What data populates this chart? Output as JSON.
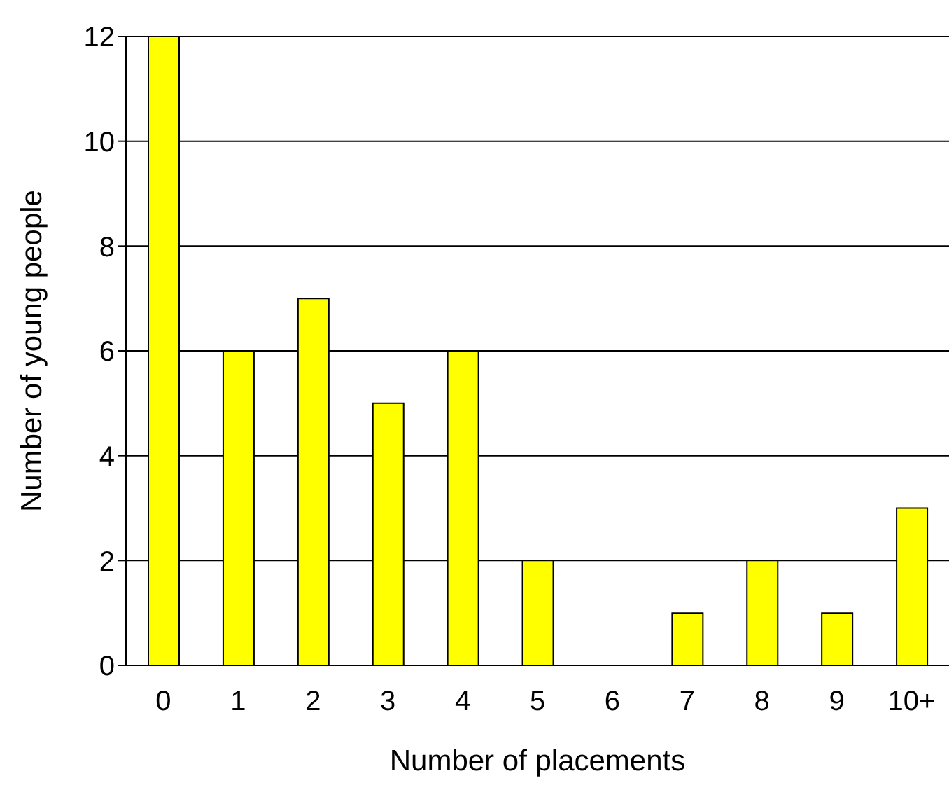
{
  "chart_data": {
    "type": "bar",
    "xlabel": "Number of placements",
    "ylabel": "Number of young people",
    "categories": [
      "0",
      "1",
      "2",
      "3",
      "4",
      "5",
      "6",
      "7",
      "8",
      "9",
      "10+"
    ],
    "values": [
      12,
      6,
      7,
      5,
      6,
      2,
      0,
      1,
      2,
      1,
      3
    ],
    "color": "#ffff00",
    "ylim": [
      0,
      12
    ],
    "yticks": [
      0,
      2,
      4,
      6,
      8,
      10,
      12
    ],
    "grid": "y"
  }
}
